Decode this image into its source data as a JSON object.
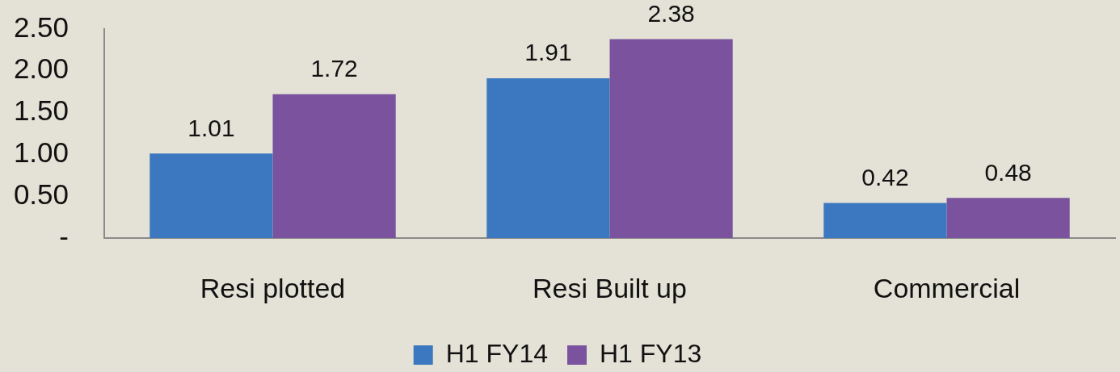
{
  "chart_data": {
    "type": "bar",
    "categories": [
      "Resi plotted",
      "Resi Built up",
      "Commercial"
    ],
    "series": [
      {
        "name": "H1 FY14",
        "color": "#3c78bf",
        "values": [
          1.01,
          1.91,
          0.42
        ]
      },
      {
        "name": "H1 FY13",
        "color": "#7a529e",
        "values": [
          1.72,
          2.38,
          0.48
        ]
      }
    ],
    "ylim": [
      0,
      2.5
    ],
    "yticks": [
      {
        "value": 0,
        "label": "-"
      },
      {
        "value": 0.5,
        "label": "0.50"
      },
      {
        "value": 1,
        "label": "1.00"
      },
      {
        "value": 1.5,
        "label": "1.50"
      },
      {
        "value": 2,
        "label": "2.00"
      },
      {
        "value": 2.5,
        "label": "2.50"
      }
    ],
    "data_labels": true,
    "grid": false,
    "legend": "bottom"
  }
}
